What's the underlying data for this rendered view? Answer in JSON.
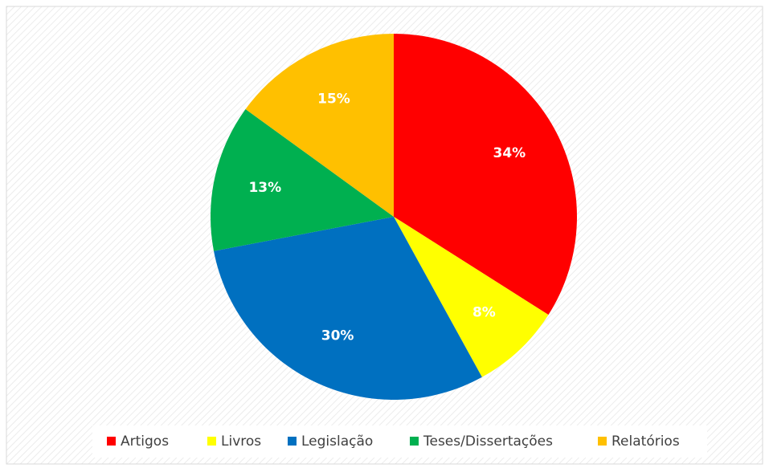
{
  "chart_data": {
    "type": "pie",
    "categories": [
      "Artigos",
      "Livros",
      "Legislação",
      "Teses/Dissertações",
      "Relatórios"
    ],
    "values": [
      34,
      8,
      30,
      13,
      15
    ],
    "value_labels": [
      "34%",
      "8%",
      "30%",
      "13%",
      "15%"
    ],
    "colors": [
      "#ff0000",
      "#ffff00",
      "#0070c0",
      "#00b050",
      "#ffc000"
    ],
    "legend": "bottom"
  }
}
